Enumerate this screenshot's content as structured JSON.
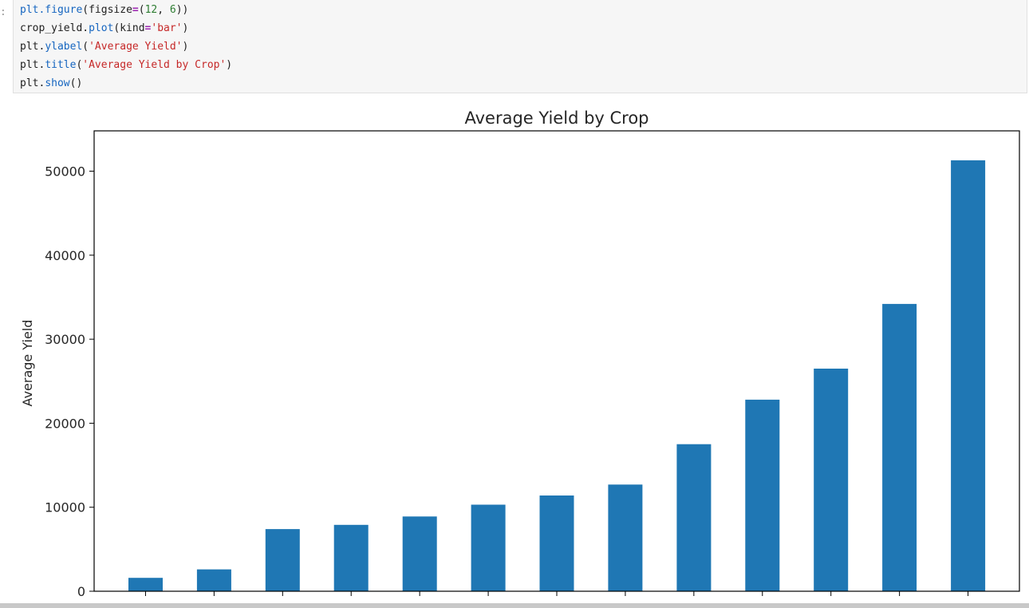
{
  "notebook": {
    "prompt": ":",
    "code_lines": [
      [
        [
          "fn",
          "plt.figure"
        ],
        [
          "txt",
          "(figsize"
        ],
        [
          "op",
          "="
        ],
        [
          "txt",
          "("
        ],
        [
          "num",
          "12"
        ],
        [
          "txt",
          ", "
        ],
        [
          "num",
          "6"
        ],
        [
          "txt",
          "))"
        ]
      ],
      [
        [
          "txt",
          "crop_yield."
        ],
        [
          "fn",
          "plot"
        ],
        [
          "txt",
          "(kind"
        ],
        [
          "op",
          "="
        ],
        [
          "str",
          "'bar'"
        ],
        [
          "txt",
          ")"
        ]
      ],
      [
        [
          "txt",
          "plt."
        ],
        [
          "fn",
          "ylabel"
        ],
        [
          "txt",
          "("
        ],
        [
          "str",
          "'Average Yield'"
        ],
        [
          "txt",
          ")"
        ]
      ],
      [
        [
          "txt",
          "plt."
        ],
        [
          "fn",
          "title"
        ],
        [
          "txt",
          "("
        ],
        [
          "str",
          "'Average Yield by Crop'"
        ],
        [
          "txt",
          ")"
        ]
      ],
      [
        [
          "txt",
          "plt."
        ],
        [
          "fn",
          "show"
        ],
        [
          "txt",
          "()"
        ]
      ]
    ]
  },
  "colors": {
    "bar": "#1f77b4",
    "axis": "#000000",
    "text": "#262626"
  },
  "chart_data": {
    "type": "bar",
    "title": "Average Yield by Crop",
    "xlabel": "",
    "ylabel": "Average Yield",
    "categories": [
      "",
      "",
      "",
      "",
      "",
      "",
      "",
      "",
      "",
      "",
      "",
      "",
      ""
    ],
    "values": [
      1600,
      2600,
      7400,
      7900,
      8900,
      10300,
      11400,
      12700,
      17500,
      22800,
      26500,
      34200,
      51300
    ],
    "ylim": [
      0,
      54800
    ],
    "yticks": [
      0,
      10000,
      20000,
      30000,
      40000,
      50000
    ],
    "ytick_labels": [
      "0",
      "10000",
      "20000",
      "30000",
      "40000",
      "50000"
    ],
    "grid": false
  }
}
